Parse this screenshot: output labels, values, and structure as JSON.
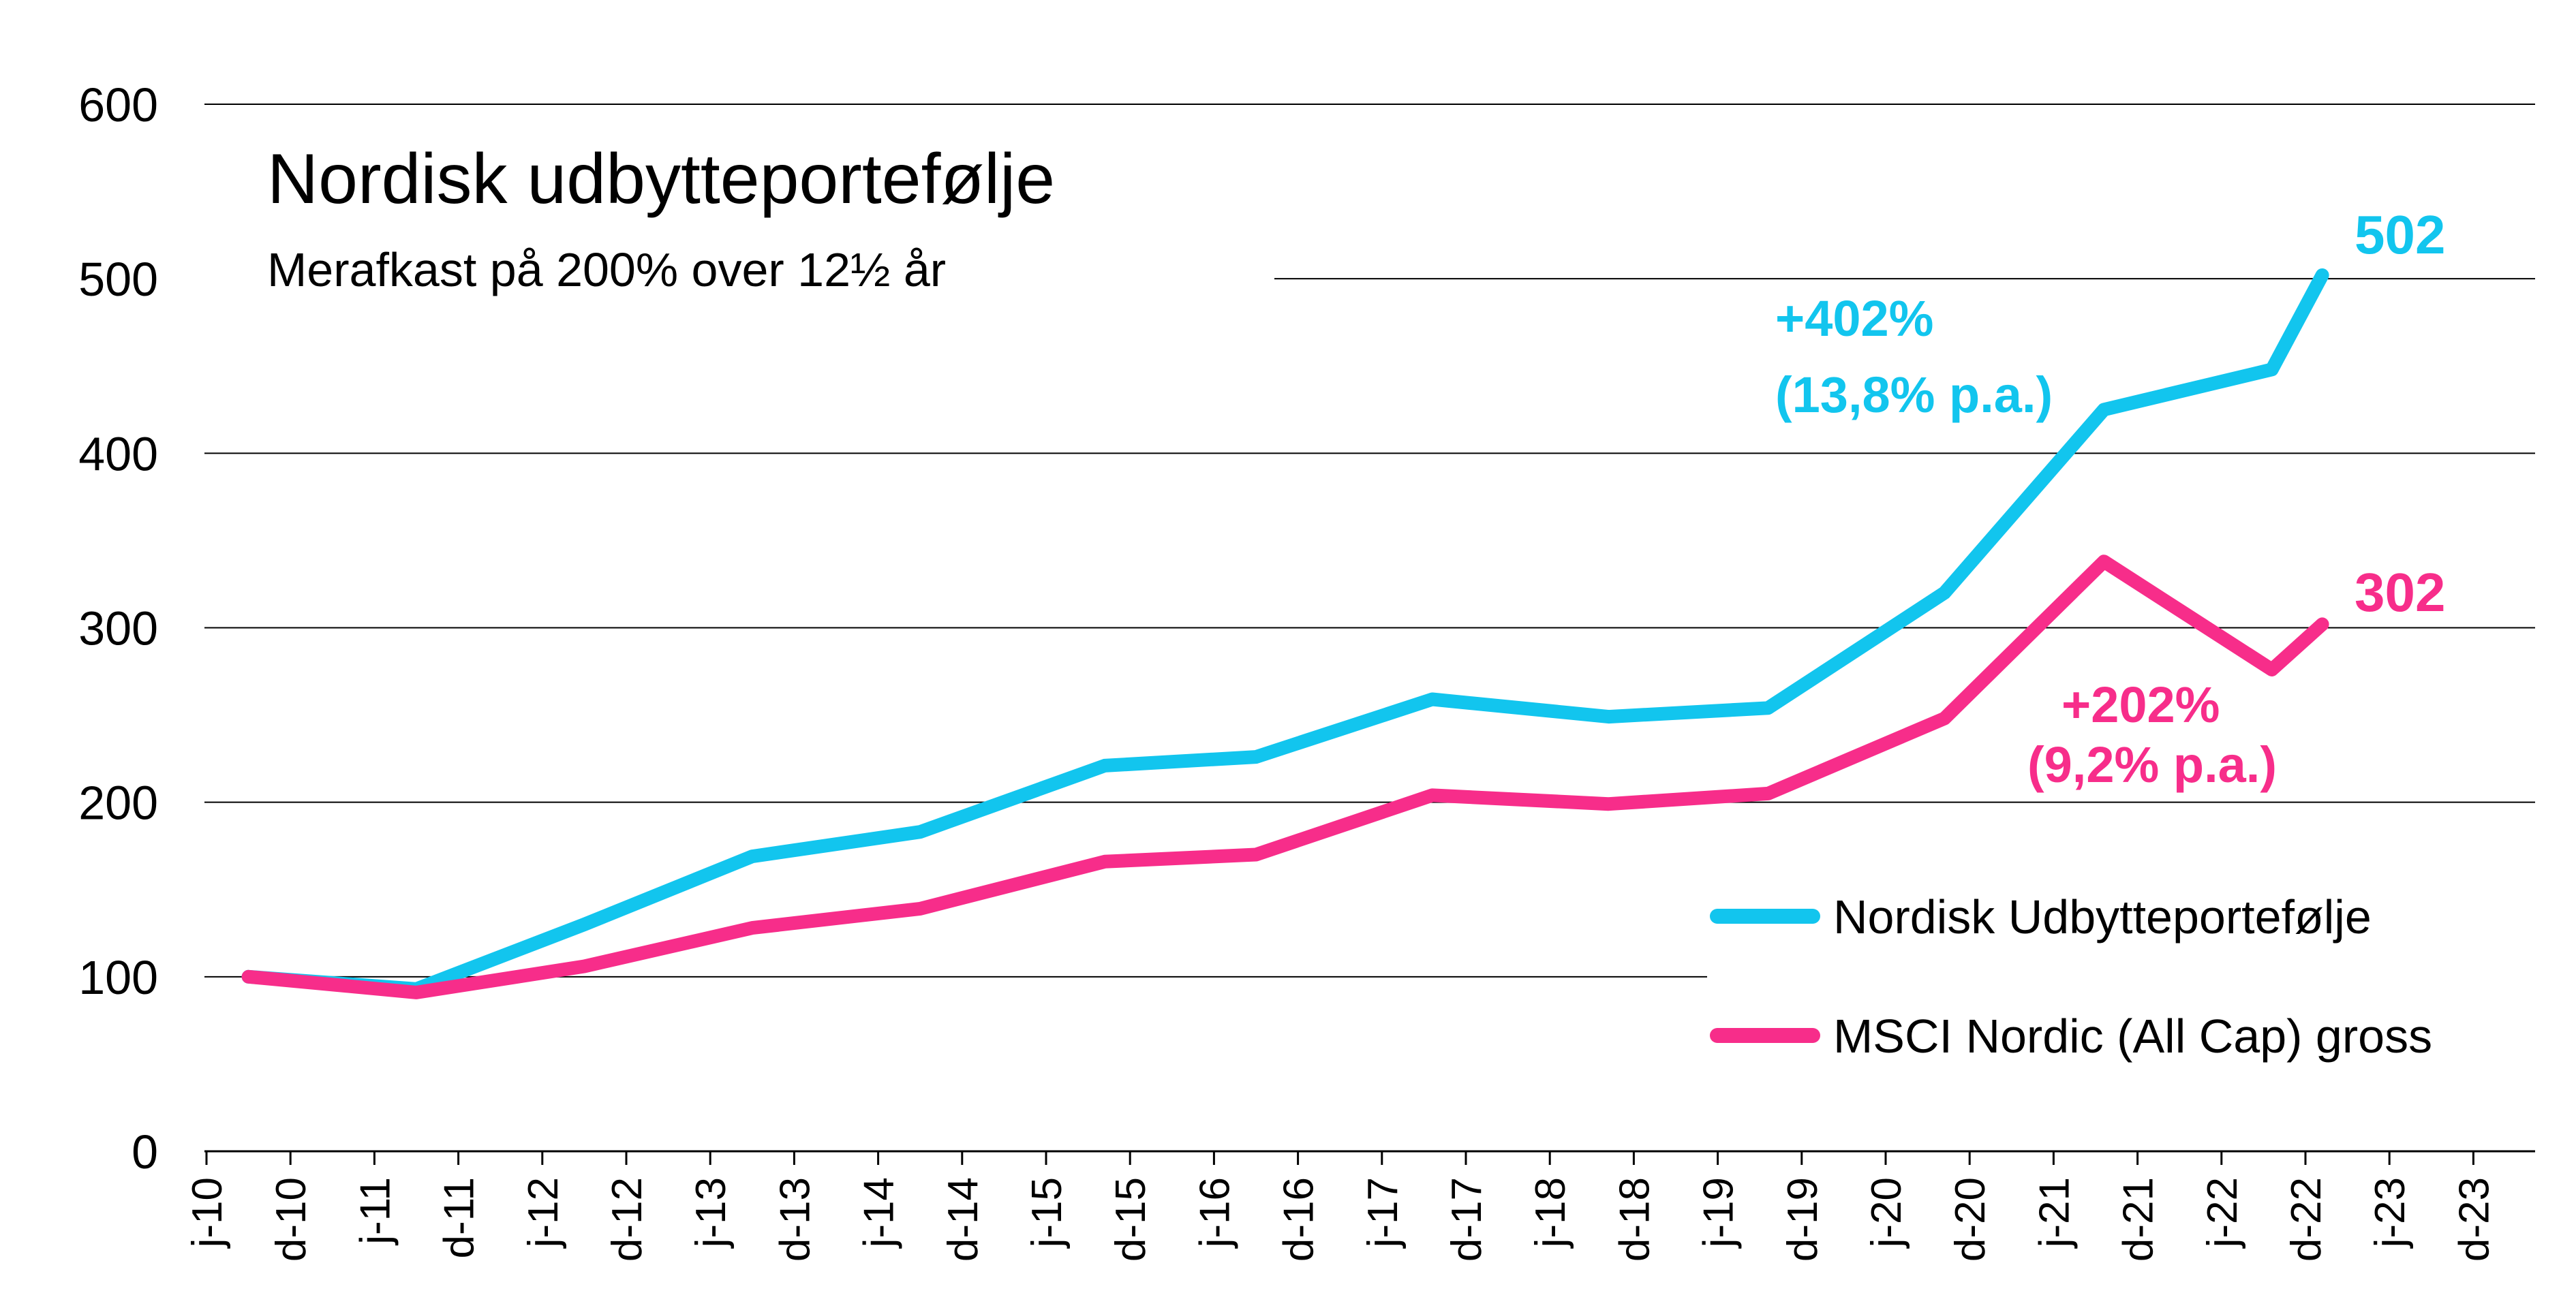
{
  "chart_data": {
    "type": "line",
    "title": "Nordisk udbytteportefølje",
    "subtitle": "Merafkast på 200% over 12½ år",
    "ylim": [
      0,
      600
    ],
    "yticks": [
      "0",
      "100",
      "200",
      "300",
      "400",
      "500",
      "600"
    ],
    "x_tick_labels": [
      "j-10",
      "d-10",
      "j-11",
      "d-11",
      "j-12",
      "d-12",
      "j-13",
      "d-13",
      "j-14",
      "d-14",
      "j-15",
      "d-15",
      "j-16",
      "d-16",
      "j-17",
      "d-17",
      "j-18",
      "d-18",
      "j-19",
      "d-19",
      "j-20",
      "d-20",
      "j-21",
      "d-21",
      "j-22",
      "d-22",
      "j-23",
      "d-23"
    ],
    "grid": "horizontal",
    "legend_position": "lower-right",
    "series": [
      {
        "name": "Nordisk Udbytteportefølje",
        "color": "#12C5EE",
        "points": [
          {
            "x": 0.5,
            "y": 100
          },
          {
            "x": 2.5,
            "y": 93
          },
          {
            "x": 4.5,
            "y": 130
          },
          {
            "x": 6.5,
            "y": 169
          },
          {
            "x": 8.5,
            "y": 183
          },
          {
            "x": 10.7,
            "y": 221
          },
          {
            "x": 12.5,
            "y": 226
          },
          {
            "x": 14.6,
            "y": 259
          },
          {
            "x": 16.7,
            "y": 249
          },
          {
            "x": 18.6,
            "y": 254
          },
          {
            "x": 20.7,
            "y": 320
          },
          {
            "x": 22.6,
            "y": 425
          },
          {
            "x": 24.6,
            "y": 448
          },
          {
            "x": 25.2,
            "y": 502
          }
        ],
        "end_label": "502",
        "annotation": [
          "+402%",
          "(13,8% p.a.)"
        ]
      },
      {
        "name": "MSCI Nordic (All Cap) gross",
        "color": "#F72D8A",
        "points": [
          {
            "x": 0.5,
            "y": 100
          },
          {
            "x": 2.5,
            "y": 91
          },
          {
            "x": 4.5,
            "y": 106
          },
          {
            "x": 6.5,
            "y": 128
          },
          {
            "x": 8.5,
            "y": 139
          },
          {
            "x": 10.7,
            "y": 166
          },
          {
            "x": 12.5,
            "y": 170
          },
          {
            "x": 14.6,
            "y": 204
          },
          {
            "x": 16.7,
            "y": 199
          },
          {
            "x": 18.6,
            "y": 205
          },
          {
            "x": 20.7,
            "y": 248
          },
          {
            "x": 22.6,
            "y": 338
          },
          {
            "x": 24.6,
            "y": 276
          },
          {
            "x": 25.2,
            "y": 302
          }
        ],
        "end_label": "302",
        "annotation": [
          "+202%",
          "(9,2% p.a.)"
        ]
      }
    ]
  }
}
